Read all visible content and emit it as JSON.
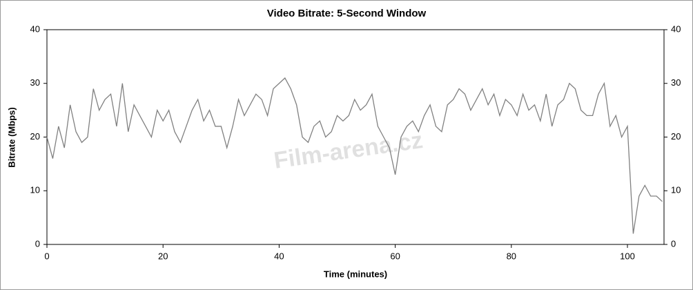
{
  "chart_data": {
    "type": "line",
    "title": "Video Bitrate: 5-Second Window",
    "x_label": "Time (minutes)",
    "y_label": "Bitrate (Mbps)",
    "watermark": "Film-arena.cz",
    "x": [
      0,
      1,
      2,
      3,
      4,
      5,
      6,
      7,
      8,
      9,
      10,
      11,
      12,
      13,
      14,
      15,
      16,
      17,
      18,
      19,
      20,
      21,
      22,
      23,
      24,
      25,
      26,
      27,
      28,
      29,
      30,
      31,
      32,
      33,
      34,
      35,
      36,
      37,
      38,
      39,
      40,
      41,
      42,
      43,
      44,
      45,
      46,
      47,
      48,
      49,
      50,
      51,
      52,
      53,
      54,
      55,
      56,
      57,
      58,
      59,
      60,
      61,
      62,
      63,
      64,
      65,
      66,
      67,
      68,
      69,
      70,
      71,
      72,
      73,
      74,
      75,
      76,
      77,
      78,
      79,
      80,
      81,
      82,
      83,
      84,
      85,
      86,
      87,
      88,
      89,
      90,
      91,
      92,
      93,
      94,
      95,
      96,
      97,
      98,
      99,
      100,
      101,
      102,
      103,
      104,
      105,
      106
    ],
    "series": [
      {
        "name": "Bitrate",
        "color": "#808080",
        "values": [
          20,
          16,
          22,
          18,
          26,
          21,
          19,
          20,
          29,
          25,
          27,
          28,
          22,
          30,
          21,
          26,
          24,
          22,
          20,
          25,
          23,
          25,
          21,
          19,
          22,
          25,
          27,
          23,
          25,
          22,
          22,
          18,
          22,
          27,
          24,
          26,
          28,
          27,
          24,
          29,
          30,
          31,
          29,
          26,
          20,
          19,
          22,
          23,
          20,
          21,
          24,
          23,
          24,
          27,
          25,
          26,
          28,
          22,
          20,
          18,
          13,
          20,
          22,
          23,
          21,
          24,
          26,
          22,
          21,
          26,
          27,
          29,
          28,
          25,
          27,
          29,
          26,
          28,
          24,
          27,
          26,
          24,
          28,
          25,
          26,
          23,
          28,
          22,
          26,
          27,
          30,
          29,
          25,
          24,
          24,
          28,
          30,
          22,
          24,
          20,
          22,
          2,
          9,
          11,
          9,
          9,
          8
        ]
      }
    ],
    "xlim": [
      0,
      106.3
    ],
    "xticks": [
      0,
      20,
      40,
      60,
      80,
      100
    ],
    "ylim": [
      0,
      40
    ],
    "yticks": [
      0,
      10,
      20,
      30,
      40
    ],
    "y2lim": [
      0,
      40
    ],
    "y2ticks": [
      0,
      10,
      20,
      30,
      40
    ]
  }
}
